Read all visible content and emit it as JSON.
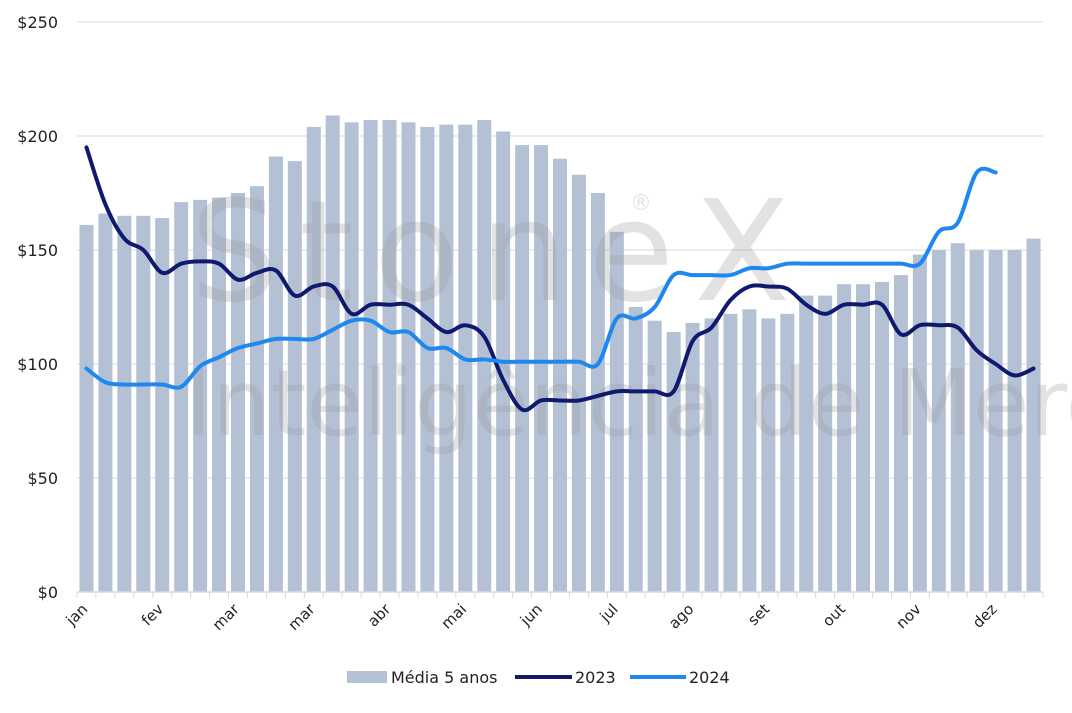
{
  "chart_data": {
    "type": "bar+line",
    "title": "",
    "xlabel": "",
    "ylabel": "",
    "ylim": [
      0,
      250
    ],
    "yticks": [
      0,
      50,
      100,
      150,
      200,
      250
    ],
    "ytick_labels": [
      "$0",
      "$50",
      "$100",
      "$150",
      "$200",
      "$250"
    ],
    "grid": true,
    "legend_position": "bottom",
    "x_tick_labels": [
      {
        "index": 0,
        "label": "jan"
      },
      {
        "index": 4,
        "label": "fev"
      },
      {
        "index": 8,
        "label": "mar"
      },
      {
        "index": 12,
        "label": "mar"
      },
      {
        "index": 16,
        "label": "abr"
      },
      {
        "index": 20,
        "label": "mai"
      },
      {
        "index": 24,
        "label": "jun"
      },
      {
        "index": 28,
        "label": "jul"
      },
      {
        "index": 32,
        "label": "ago"
      },
      {
        "index": 36,
        "label": "set"
      },
      {
        "index": 40,
        "label": "out"
      },
      {
        "index": 44,
        "label": "nov"
      },
      {
        "index": 48,
        "label": "dez"
      }
    ],
    "n_points": 51,
    "series": [
      {
        "name": "Média 5 anos",
        "type": "bar",
        "color": "#b4c0d4",
        "values": [
          161,
          166,
          165,
          165,
          164,
          171,
          172,
          173,
          175,
          178,
          191,
          189,
          204,
          209,
          206,
          207,
          207,
          206,
          204,
          205,
          205,
          207,
          202,
          196,
          196,
          190,
          183,
          175,
          158,
          125,
          119,
          114,
          118,
          120,
          122,
          124,
          120,
          122,
          130,
          130,
          135,
          135,
          136,
          139,
          148,
          150,
          153,
          150,
          150,
          150,
          155
        ]
      },
      {
        "name": "2023",
        "type": "line",
        "color": "#0f1a6e",
        "values": [
          195,
          170,
          155,
          150,
          140,
          144,
          145,
          144,
          137,
          140,
          141,
          130,
          134,
          134,
          122,
          126,
          126,
          126,
          120,
          114,
          117,
          112,
          93,
          80,
          84,
          84,
          84,
          86,
          88,
          88,
          88,
          88,
          110,
          116,
          128,
          134,
          134,
          133,
          126,
          122,
          126,
          126,
          126,
          113,
          117,
          117,
          116,
          106,
          100,
          95,
          98
        ]
      },
      {
        "name": "2024",
        "type": "line",
        "color": "#1e88ee",
        "values": [
          98,
          92,
          91,
          91,
          91,
          90,
          99,
          103,
          107,
          109,
          111,
          111,
          111,
          115,
          119,
          119,
          114,
          114,
          107,
          107,
          102,
          102,
          101,
          101,
          101,
          101,
          101,
          100,
          120,
          120,
          125,
          139,
          139,
          139,
          139,
          142,
          142,
          144,
          144,
          144,
          144,
          144,
          144,
          144,
          144,
          158,
          162,
          184,
          184
        ]
      }
    ]
  },
  "watermark": {
    "brand": "StoneX®",
    "subtitle": "Inteligência de Mercado"
  }
}
